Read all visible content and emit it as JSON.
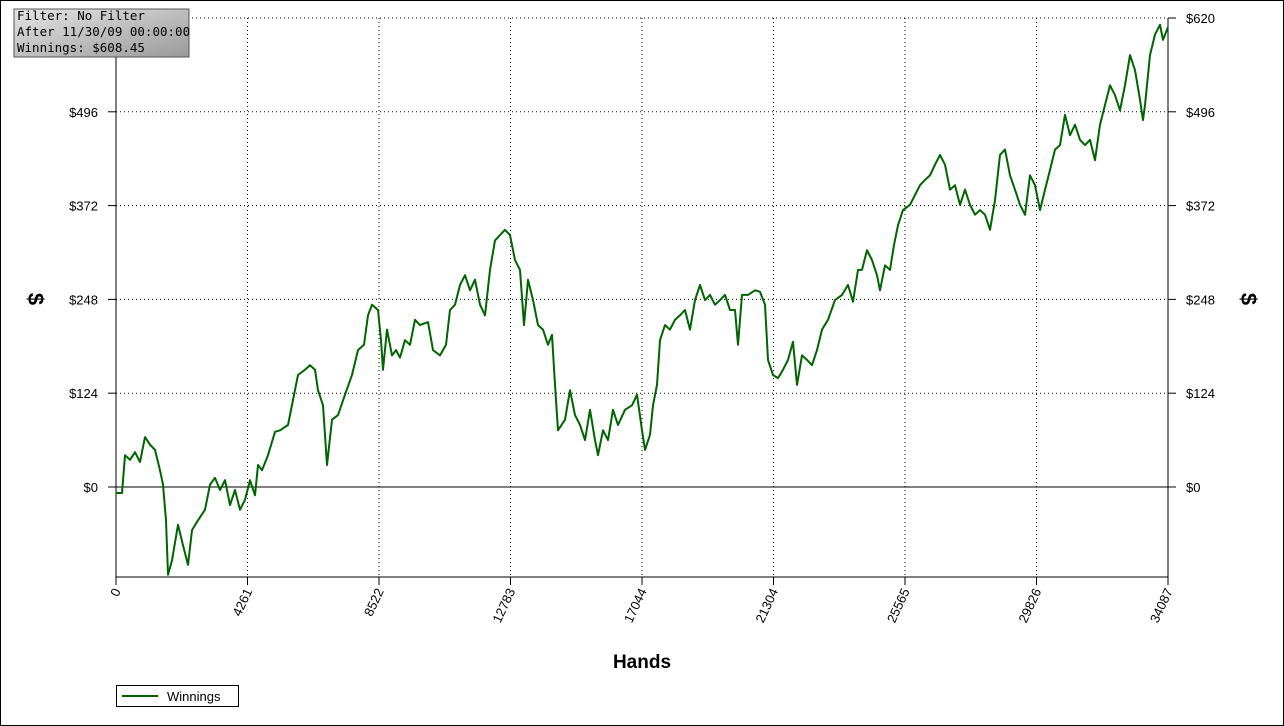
{
  "chart_data": {
    "type": "line",
    "annotations": [
      "Filter: No Filter",
      "After 11/30/09 00:00:00",
      "Winnings: $608.45"
    ],
    "xlabel": "Hands",
    "ylabel": "$",
    "xlim": [
      0,
      34087
    ],
    "ylim": [
      -119,
      620
    ],
    "xticks": [
      0,
      4261,
      8522,
      12783,
      17044,
      21304,
      25565,
      29826,
      34087
    ],
    "yticks": [
      {
        "value": 620,
        "label": "$620"
      },
      {
        "value": 496,
        "label": "$496"
      },
      {
        "value": 372,
        "label": "$372"
      },
      {
        "value": 248,
        "label": "$248"
      },
      {
        "value": 124,
        "label": "$124"
      },
      {
        "value": 0,
        "label": "$0"
      }
    ],
    "grid": true,
    "legend": "bottom-left",
    "x": [
      0,
      194,
      292,
      454,
      616,
      778,
      940,
      1102,
      1264,
      1426,
      1523,
      1620,
      1685,
      1815,
      2009,
      2171,
      2333,
      2463,
      2657,
      2884,
      3046,
      3208,
      3370,
      3532,
      3694,
      3856,
      4018,
      4180,
      4342,
      4504,
      4601,
      4731,
      4925,
      5152,
      5314,
      5573,
      5735,
      5897,
      6124,
      6286,
      6448,
      6545,
      6707,
      6837,
      6999,
      7193,
      7420,
      7647,
      7841,
      8035,
      8165,
      8295,
      8489,
      8587,
      8651,
      8781,
      8943,
      9073,
      9202,
      9364,
      9526,
      9688,
      9850,
      10109,
      10271,
      10498,
      10693,
      10822,
      10984,
      11146,
      11308,
      11470,
      11632,
      11794,
      11956,
      12118,
      12280,
      12442,
      12604,
      12766,
      12928,
      13090,
      13220,
      13350,
      13512,
      13674,
      13836,
      13998,
      14127,
      14224,
      14322,
      14548,
      14710,
      14872,
      15034,
      15196,
      15358,
      15520,
      15617,
      15779,
      15941,
      16103,
      16265,
      16492,
      16719,
      16881,
      17043,
      17140,
      17302,
      17400,
      17529,
      17627,
      17789,
      17951,
      18113,
      18275,
      18437,
      18599,
      18761,
      18923,
      19085,
      19247,
      19408,
      19570,
      19732,
      19894,
      20056,
      20154,
      20284,
      20478,
      20705,
      20867,
      21029,
      21126,
      21288,
      21450,
      21612,
      21774,
      21936,
      22066,
      22228,
      22390,
      22552,
      22714,
      22876,
      23070,
      23297,
      23524,
      23718,
      23880,
      24042,
      24172,
      24334,
      24496,
      24658,
      24755,
      24917,
      25079,
      25209,
      25338,
      25500,
      25727,
      25889,
      26051,
      26213,
      26375,
      26537,
      26699,
      26861,
      27023,
      27185,
      27347,
      27509,
      27671,
      27833,
      27995,
      28157,
      28319,
      28481,
      28643,
      28805,
      28967,
      29129,
      29291,
      29453,
      29615,
      29777,
      29939,
      30101,
      30263,
      30425,
      30587,
      30749,
      30911,
      31073,
      31235,
      31397,
      31559,
      31721,
      31883,
      32045,
      32207,
      32369,
      32531,
      32693,
      32855,
      33017,
      33179,
      33276,
      33341,
      33503,
      33665,
      33827,
      33924,
      34087
    ],
    "series": [
      {
        "name": "Winnings",
        "color": "#006400",
        "values": [
          -8,
          -8,
          42,
          36,
          46,
          33,
          66,
          56,
          49,
          22,
          3,
          -44,
          -116,
          -97,
          -50,
          -77,
          -103,
          -57,
          -44,
          -30,
          3,
          12,
          -4,
          9,
          -24,
          -4,
          -30,
          -17,
          9,
          -11,
          29,
          22,
          42,
          73,
          75,
          82,
          115,
          148,
          155,
          161,
          155,
          128,
          108,
          29,
          89,
          95,
          122,
          148,
          181,
          188,
          227,
          241,
          234,
          194,
          155,
          208,
          174,
          181,
          171,
          194,
          188,
          221,
          214,
          218,
          181,
          174,
          188,
          234,
          241,
          267,
          280,
          260,
          274,
          241,
          227,
          287,
          326,
          333,
          340,
          333,
          300,
          287,
          214,
          274,
          247,
          214,
          208,
          188,
          201,
          135,
          75,
          89,
          128,
          95,
          82,
          62,
          102,
          62,
          42,
          75,
          62,
          102,
          82,
          102,
          108,
          122,
          75,
          49,
          69,
          108,
          135,
          194,
          214,
          208,
          221,
          227,
          234,
          208,
          247,
          267,
          247,
          254,
          241,
          247,
          254,
          234,
          234,
          188,
          254,
          254,
          260,
          258,
          241,
          168,
          148,
          144,
          155,
          168,
          192,
          135,
          174,
          168,
          161,
          181,
          208,
          221,
          247,
          254,
          267,
          245,
          287,
          287,
          313,
          300,
          280,
          260,
          293,
          287,
          320,
          346,
          366,
          373,
          386,
          399,
          406,
          412,
          426,
          439,
          426,
          393,
          399,
          373,
          393,
          373,
          360,
          366,
          360,
          340,
          379,
          439,
          446,
          412,
          393,
          373,
          360,
          412,
          399,
          366,
          393,
          419,
          446,
          452,
          492,
          465,
          479,
          459,
          452,
          459,
          432,
          479,
          505,
          531,
          518,
          498,
          531,
          571,
          551,
          512,
          485,
          505,
          571,
          598,
          611,
          591,
          608
        ]
      }
    ]
  }
}
